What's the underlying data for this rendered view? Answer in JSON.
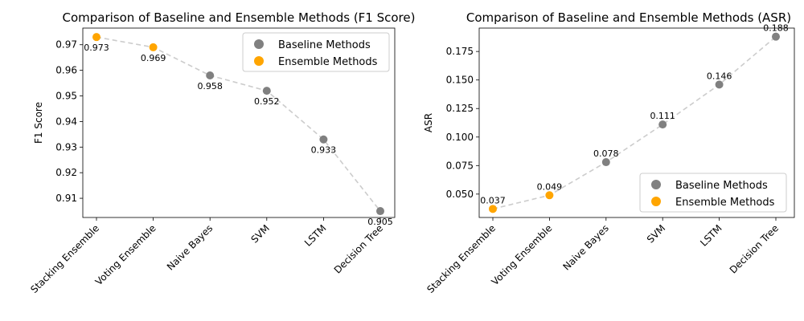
{
  "chart_data": [
    {
      "type": "scatter",
      "title": "Comparison of Baseline and Ensemble Methods (F1 Score)",
      "xlabel": "",
      "ylabel": "F1 Score",
      "categories": [
        "Stacking Ensemble",
        "Voting Ensemble",
        "Naive Bayes",
        "SVM",
        "LSTM",
        "Decision Tree"
      ],
      "values": [
        0.973,
        0.969,
        0.958,
        0.952,
        0.933,
        0.905
      ],
      "labels": [
        "0.973",
        "0.969",
        "0.958",
        "0.952",
        "0.933",
        "0.905"
      ],
      "groups": [
        "Ensemble Methods",
        "Ensemble Methods",
        "Baseline Methods",
        "Baseline Methods",
        "Baseline Methods",
        "Baseline Methods"
      ],
      "ylim": [
        0.9025,
        0.9765
      ],
      "yticks": [
        0.91,
        0.92,
        0.93,
        0.94,
        0.95,
        0.96,
        0.97
      ],
      "label_position": "below",
      "legend": [
        "Baseline Methods",
        "Ensemble Methods"
      ],
      "legend_position": "top-right",
      "grid": false
    },
    {
      "type": "scatter",
      "title": "Comparison of Baseline and Ensemble Methods (ASR)",
      "xlabel": "",
      "ylabel": "ASR",
      "categories": [
        "Stacking Ensemble",
        "Voting Ensemble",
        "Naive Bayes",
        "SVM",
        "LSTM",
        "Decision Tree"
      ],
      "values": [
        0.037,
        0.049,
        0.078,
        0.111,
        0.146,
        0.188
      ],
      "labels": [
        "0.037",
        "0.049",
        "0.078",
        "0.111",
        "0.146",
        "0.188"
      ],
      "groups": [
        "Ensemble Methods",
        "Ensemble Methods",
        "Baseline Methods",
        "Baseline Methods",
        "Baseline Methods",
        "Baseline Methods"
      ],
      "ylim": [
        0.0295,
        0.1955
      ],
      "yticks": [
        0.05,
        0.075,
        0.1,
        0.125,
        0.15,
        0.175
      ],
      "ytick_labels": [
        "0.050",
        "0.075",
        "0.100",
        "0.125",
        "0.150",
        "0.175"
      ],
      "label_position": "above",
      "legend": [
        "Baseline Methods",
        "Ensemble Methods"
      ],
      "legend_position": "lower-right",
      "grid": false
    }
  ],
  "colors": {
    "Baseline Methods": "#808080",
    "Ensemble Methods": "#ffa500",
    "connector": "#cccccc"
  }
}
